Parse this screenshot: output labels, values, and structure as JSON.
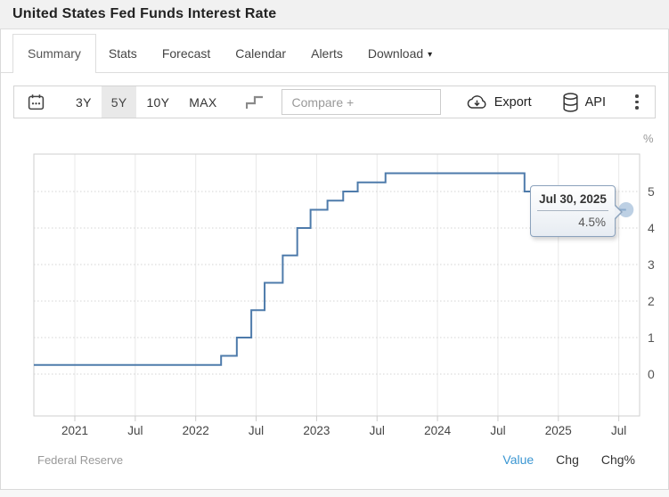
{
  "header": {
    "title": "United States Fed Funds Interest Rate"
  },
  "tabs": [
    {
      "label": "Summary",
      "active": true
    },
    {
      "label": "Stats",
      "active": false
    },
    {
      "label": "Forecast",
      "active": false
    },
    {
      "label": "Calendar",
      "active": false
    },
    {
      "label": "Alerts",
      "active": false
    },
    {
      "label": "Download",
      "active": false,
      "caret": true
    }
  ],
  "toolbar": {
    "ranges": [
      "3Y",
      "5Y",
      "10Y",
      "MAX"
    ],
    "active_range": "5Y",
    "compare_placeholder": "Compare +",
    "export_label": "Export",
    "api_label": "API",
    "icons": [
      "calendar-icon",
      "step-line-icon",
      "cloud-download-icon",
      "database-icon",
      "kebab-icon"
    ]
  },
  "tooltip": {
    "date": "Jul 30, 2025",
    "value": "4.5%"
  },
  "footer": {
    "source": "Federal Reserve",
    "modes": [
      {
        "label": "Value",
        "active": true
      },
      {
        "label": "Chg",
        "active": false
      },
      {
        "label": "Chg%",
        "active": false
      }
    ]
  },
  "colors": {
    "line": "#4e7bab",
    "marker": "#a4beda",
    "grid_v": "#e8e8e8",
    "grid_h": "#d4d4d4",
    "plot_border": "#cfcfcf",
    "x_label": "#444",
    "y_label": "#555",
    "unit_label": "#999",
    "value_link": "#3a96d2"
  },
  "chart_data": {
    "type": "line",
    "line_style": "step-after",
    "title": "United States Fed Funds Interest Rate",
    "source": "Federal Reserve",
    "unit": "%",
    "ylabel": "%",
    "grid": "on",
    "legend": "none",
    "ylim": [
      -1.2,
      6.1
    ],
    "yticks": [
      0,
      1,
      2,
      3,
      4,
      5
    ],
    "xticks": [
      {
        "pos": 2021.0,
        "label": "2021"
      },
      {
        "pos": 2021.5,
        "label": "Jul"
      },
      {
        "pos": 2022.0,
        "label": "2022"
      },
      {
        "pos": 2022.5,
        "label": "Jul"
      },
      {
        "pos": 2023.0,
        "label": "2023"
      },
      {
        "pos": 2023.5,
        "label": "Jul"
      },
      {
        "pos": 2024.0,
        "label": "2024"
      },
      {
        "pos": 2024.5,
        "label": "Jul"
      },
      {
        "pos": 2025.0,
        "label": "2025"
      },
      {
        "pos": 2025.5,
        "label": "Jul"
      }
    ],
    "series": [
      {
        "name": "Fed Funds Interest Rate",
        "points": [
          {
            "x": 2020.65,
            "date": "2020-08",
            "value": 0.25
          },
          {
            "x": 2022.21,
            "date": "2022-03-17",
            "value": 0.5
          },
          {
            "x": 2022.34,
            "date": "2022-05-05",
            "value": 1.0
          },
          {
            "x": 2022.46,
            "date": "2022-06-16",
            "value": 1.75
          },
          {
            "x": 2022.57,
            "date": "2022-07-28",
            "value": 2.5
          },
          {
            "x": 2022.72,
            "date": "2022-09-22",
            "value": 3.25
          },
          {
            "x": 2022.84,
            "date": "2022-11-03",
            "value": 4.0
          },
          {
            "x": 2022.95,
            "date": "2022-12-15",
            "value": 4.5
          },
          {
            "x": 2023.09,
            "date": "2023-02-02",
            "value": 4.75
          },
          {
            "x": 2023.22,
            "date": "2023-03-23",
            "value": 5.0
          },
          {
            "x": 2023.34,
            "date": "2023-05-04",
            "value": 5.25
          },
          {
            "x": 2023.57,
            "date": "2023-07-27",
            "value": 5.5
          },
          {
            "x": 2024.72,
            "date": "2024-09-19",
            "value": 5.0
          },
          {
            "x": 2024.85,
            "date": "2024-11-08",
            "value": 4.75
          },
          {
            "x": 2024.96,
            "date": "2024-12-19",
            "value": 4.5
          },
          {
            "x": 2025.56,
            "date": "2025-07-30",
            "value": 4.5
          }
        ]
      }
    ],
    "last_point": {
      "date": "Jul 30, 2025",
      "value": 4.5
    }
  }
}
